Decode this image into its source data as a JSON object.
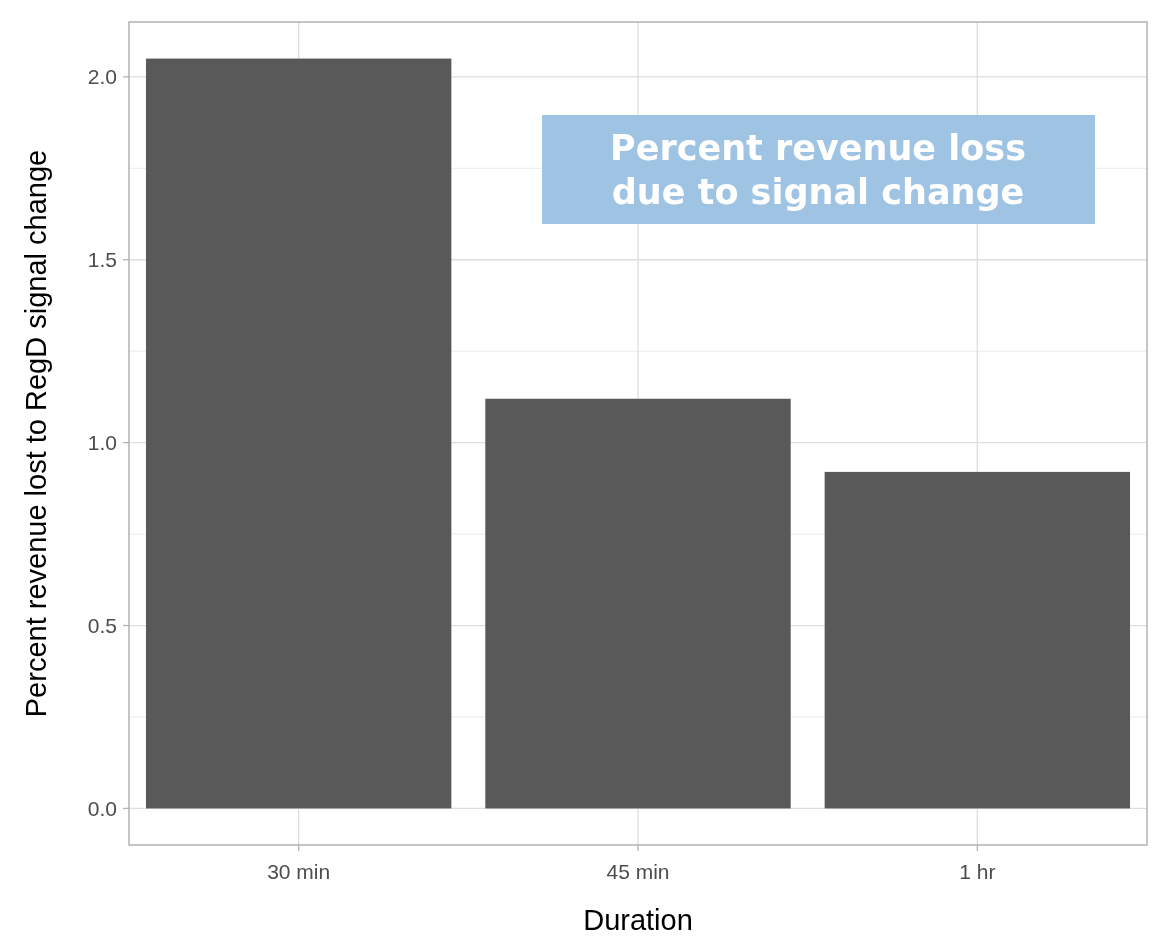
{
  "chart_data": {
    "type": "bar",
    "xlabel": "Duration",
    "ylabel": "Percent revenue lost to RegD signal change",
    "categories": [
      "30 min",
      "45 min",
      "1 hr"
    ],
    "values": [
      2.05,
      1.12,
      0.92
    ],
    "color": "#595959",
    "ylim": [
      -0.1,
      2.15
    ],
    "yticks": [
      {
        "value": 0,
        "label": "0.0"
      },
      {
        "value": 0.5,
        "label": "0.5"
      },
      {
        "value": 1,
        "label": "1.0"
      },
      {
        "value": 1.5,
        "label": "1.5"
      },
      {
        "value": 2,
        "label": "2.0"
      }
    ],
    "grid": true,
    "annotations": [
      "Percent revenue loss\ndue to signal change"
    ]
  }
}
